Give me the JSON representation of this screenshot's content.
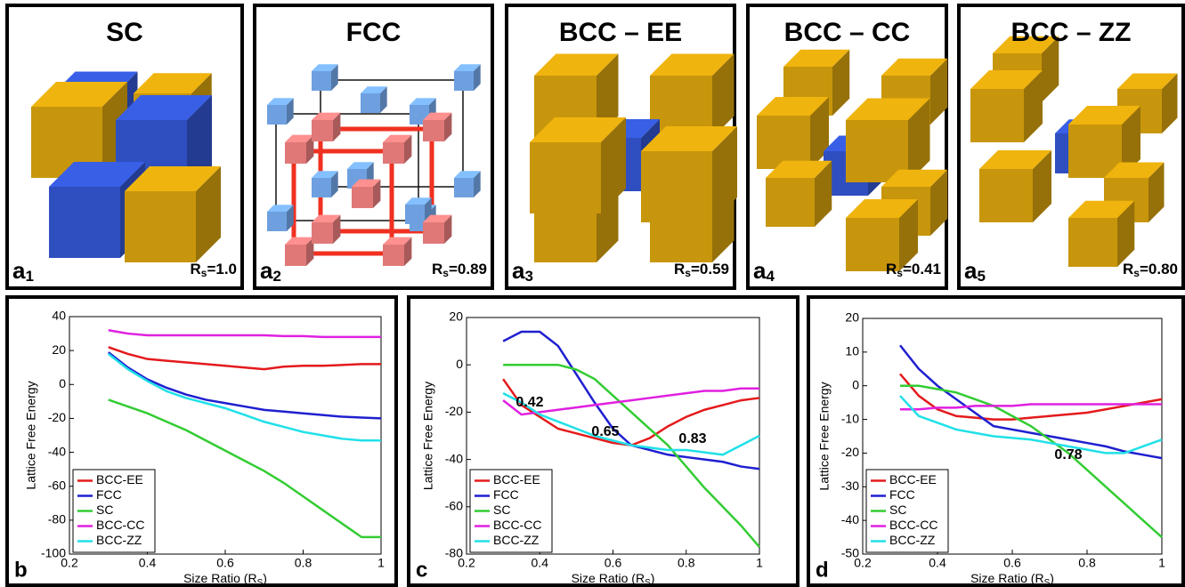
{
  "panels": [
    {
      "title": "SC",
      "label": "a",
      "label_sub": "1",
      "rs_symbol": "R",
      "rs_sub": "s",
      "rs_value": "=1.0"
    },
    {
      "title": "FCC",
      "label": "a",
      "label_sub": "2",
      "rs_symbol": "R",
      "rs_sub": "s",
      "rs_value": "=0.89"
    },
    {
      "title": "BCC – EE",
      "label": "a",
      "label_sub": "3",
      "rs_symbol": "R",
      "rs_sub": "s",
      "rs_value": "=0.59"
    },
    {
      "title": "BCC – CC",
      "label": "a",
      "label_sub": "4",
      "rs_symbol": "R",
      "rs_sub": "s",
      "rs_value": "=0.41"
    },
    {
      "title": "BCC – ZZ",
      "label": "a",
      "label_sub": "5",
      "rs_symbol": "R",
      "rs_sub": "s",
      "rs_value": "=0.80"
    }
  ],
  "chart_data": [
    {
      "type": "line",
      "panel_label": "b",
      "xlabel": "Size Ratio (R",
      "xlabel_sub": "S",
      "xlabel_end": ")",
      "ylabel": "Lattice Free Energy",
      "xlim": [
        0.2,
        1
      ],
      "xticks": [
        0.2,
        0.4,
        0.6,
        0.8,
        1
      ],
      "ylim": [
        -100,
        40
      ],
      "yticks": [
        -100,
        -80,
        -60,
        -40,
        -20,
        0,
        20,
        40
      ],
      "x": [
        0.3,
        0.35,
        0.4,
        0.45,
        0.5,
        0.55,
        0.6,
        0.65,
        0.7,
        0.75,
        0.8,
        0.85,
        0.9,
        0.95,
        1.0
      ],
      "series": [
        {
          "name": "BCC-EE",
          "color": "#e41a1c",
          "values": [
            22,
            18,
            15,
            14,
            13,
            12,
            11,
            10,
            9,
            10.5,
            11,
            11,
            11.5,
            12,
            12
          ]
        },
        {
          "name": "FCC",
          "color": "#1f1fd0",
          "values": [
            19,
            10,
            3,
            -2,
            -6,
            -9,
            -11,
            -13,
            -15,
            -16,
            -17,
            -18,
            -19,
            -19.5,
            -20
          ]
        },
        {
          "name": "SC",
          "color": "#33cc33",
          "values": [
            -9,
            -13,
            -17,
            -22,
            -27,
            -33,
            -39,
            -45,
            -51,
            -58,
            -66,
            -74,
            -82,
            -90,
            -90
          ]
        },
        {
          "name": "BCC-CC",
          "color": "#e020e0",
          "values": [
            32,
            30,
            29,
            29,
            29,
            29,
            29,
            29,
            29,
            28.5,
            28.5,
            28,
            28,
            28,
            28
          ]
        },
        {
          "name": "BCC-ZZ",
          "color": "#20e0e8",
          "values": [
            18,
            9,
            2,
            -4,
            -8,
            -11,
            -14,
            -18,
            -22,
            -25,
            -28,
            -30,
            -32,
            -33,
            -33
          ]
        }
      ],
      "annotations": []
    },
    {
      "type": "line",
      "panel_label": "c",
      "xlabel": "Size Ratio (R",
      "xlabel_sub": "S",
      "xlabel_end": ")",
      "ylabel": "Lattice Free Energy",
      "xlim": [
        0.2,
        1
      ],
      "xticks": [
        0.2,
        0.4,
        0.6,
        0.8,
        1
      ],
      "ylim": [
        -80,
        20
      ],
      "yticks": [
        -80,
        -60,
        -40,
        -20,
        0,
        20
      ],
      "x": [
        0.3,
        0.35,
        0.4,
        0.45,
        0.5,
        0.55,
        0.6,
        0.65,
        0.7,
        0.75,
        0.8,
        0.85,
        0.9,
        0.95,
        1.0
      ],
      "series": [
        {
          "name": "BCC-EE",
          "color": "#e41a1c",
          "values": [
            -6,
            -17,
            -22,
            -27,
            -29,
            -31,
            -33,
            -34,
            -31,
            -26,
            -22,
            -19,
            -17,
            -15,
            -14
          ]
        },
        {
          "name": "FCC",
          "color": "#1f1fd0",
          "values": [
            10,
            14,
            14,
            8,
            -4,
            -16,
            -27,
            -34,
            -36,
            -38,
            -39,
            -40,
            -41,
            -43,
            -44
          ]
        },
        {
          "name": "SC",
          "color": "#33cc33",
          "values": [
            0,
            0,
            0,
            0,
            -2,
            -6,
            -13,
            -20,
            -27,
            -34,
            -43,
            -52,
            -60,
            -68,
            -77
          ]
        },
        {
          "name": "BCC-CC",
          "color": "#e020e0",
          "values": [
            -15,
            -21,
            -20,
            -19,
            -18,
            -17,
            -16,
            -15,
            -14,
            -13,
            -12,
            -11,
            -11,
            -10,
            -10
          ]
        },
        {
          "name": "BCC-ZZ",
          "color": "#20e0e8",
          "values": [
            -12,
            -16,
            -21,
            -24,
            -27,
            -30,
            -32,
            -34,
            -35,
            -36,
            -36,
            -37,
            -38,
            -34,
            -30
          ]
        }
      ],
      "annotations": [
        "0.42",
        "0.65",
        "0.83"
      ]
    },
    {
      "type": "line",
      "panel_label": "d",
      "xlabel": "Size Ratio (R",
      "xlabel_sub": "S",
      "xlabel_end": ")",
      "ylabel": "Lattice Free Energy",
      "xlim": [
        0.2,
        1
      ],
      "xticks": [
        0.2,
        0.4,
        0.6,
        0.8,
        1
      ],
      "ylim": [
        -50,
        20
      ],
      "yticks": [
        -50,
        -40,
        -30,
        -20,
        -10,
        0,
        10,
        20
      ],
      "x": [
        0.3,
        0.35,
        0.4,
        0.45,
        0.5,
        0.55,
        0.6,
        0.65,
        0.7,
        0.75,
        0.8,
        0.85,
        0.9,
        0.95,
        1.0
      ],
      "series": [
        {
          "name": "BCC-EE",
          "color": "#e41a1c",
          "values": [
            3.5,
            -3,
            -7,
            -9,
            -9.5,
            -10,
            -10,
            -9.5,
            -9,
            -8.5,
            -8,
            -7,
            -6,
            -5,
            -4
          ]
        },
        {
          "name": "FCC",
          "color": "#1f1fd0",
          "values": [
            12,
            5,
            0,
            -4,
            -8,
            -12,
            -13,
            -14,
            -15,
            -16,
            -17,
            -18,
            -19.5,
            -20.5,
            -21.5
          ]
        },
        {
          "name": "SC",
          "color": "#33cc33",
          "values": [
            0,
            0,
            -1,
            -2,
            -4,
            -6,
            -9,
            -12,
            -16,
            -20,
            -25,
            -30,
            -35,
            -40,
            -45
          ]
        },
        {
          "name": "BCC-CC",
          "color": "#e020e0",
          "values": [
            -7,
            -7,
            -6.5,
            -6.5,
            -6,
            -6,
            -6,
            -5.5,
            -5.5,
            -5.5,
            -5.5,
            -5.5,
            -5.5,
            -5.5,
            -5.5
          ]
        },
        {
          "name": "BCC-ZZ",
          "color": "#20e0e8",
          "values": [
            -3,
            -9,
            -11,
            -13,
            -14,
            -15,
            -15.5,
            -16,
            -17,
            -18,
            -19,
            -20,
            -20,
            -18,
            -16
          ]
        }
      ],
      "annotations": [
        "0.78"
      ]
    }
  ]
}
